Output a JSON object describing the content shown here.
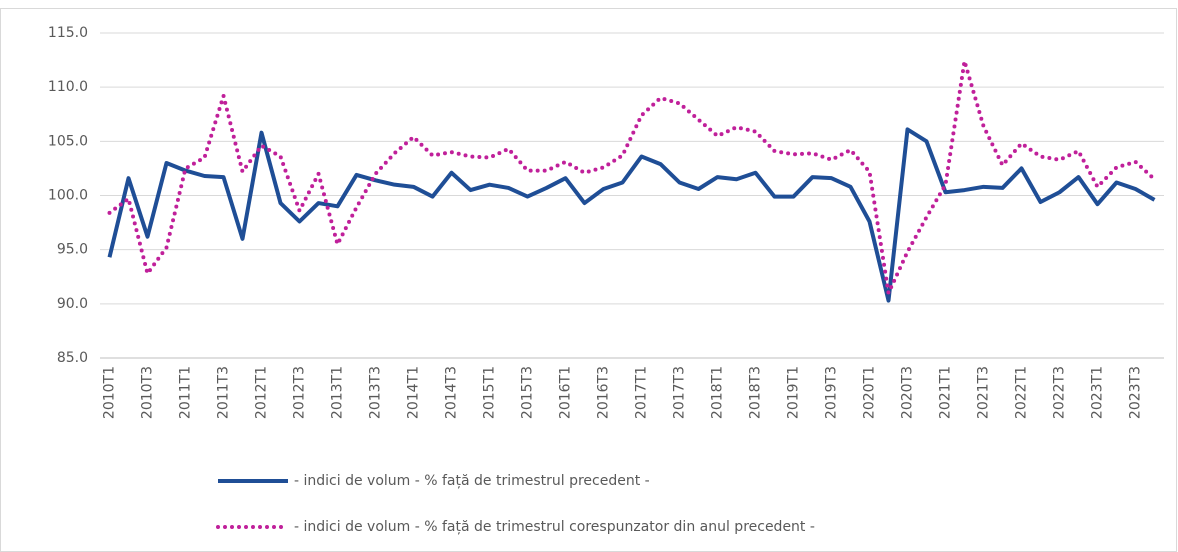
{
  "chart_data": {
    "type": "line",
    "categories": [
      "2010T1",
      null,
      "2010T3",
      null,
      "2011T1",
      null,
      "2011T3",
      null,
      "2012T1",
      null,
      "2012T3",
      null,
      "2013T1",
      null,
      "2013T3",
      null,
      "2014T1",
      null,
      "2014T3",
      null,
      "2015T1",
      null,
      "2015T3",
      null,
      "2016T1",
      null,
      "2016T3",
      null,
      "2017T1",
      null,
      "2017T3",
      null,
      "2018T1",
      null,
      "2018T3",
      null,
      "2019T1",
      null,
      "2019T3",
      null,
      "2020T1",
      null,
      "2020T3",
      null,
      "2021T1",
      null,
      "2021T3",
      null,
      "2022T1",
      null,
      "2022T3",
      null,
      "2023T1",
      null,
      "2023T3",
      null
    ],
    "series": [
      {
        "name": "- indici de volum - % față de trimestrul precedent -",
        "color": "#1f4e96",
        "dash": "solid",
        "values": [
          94.3,
          101.6,
          96.2,
          103.0,
          102.3,
          101.8,
          101.7,
          96.0,
          105.8,
          99.3,
          97.6,
          99.3,
          99.0,
          101.9,
          101.4,
          101.0,
          100.8,
          99.9,
          102.1,
          100.5,
          101.0,
          100.7,
          99.9,
          100.7,
          101.6,
          99.3,
          100.6,
          101.2,
          103.6,
          102.9,
          101.2,
          100.6,
          101.7,
          101.5,
          102.1,
          99.9,
          99.9,
          101.7,
          101.6,
          100.8,
          97.6,
          90.3,
          106.1,
          105.0,
          100.3,
          100.5,
          100.8,
          100.7,
          102.5,
          99.4,
          100.3,
          101.7,
          99.2,
          101.2,
          100.6,
          99.6
        ]
      },
      {
        "name": "- indici de volum - % față de trimestrul corespunzator din anul precedent -",
        "color": "#c0209a",
        "dash": "dotted",
        "values": [
          98.4,
          99.7,
          92.8,
          95.2,
          102.5,
          103.5,
          109.2,
          102.2,
          104.6,
          103.6,
          98.6,
          102.0,
          95.5,
          98.9,
          102.0,
          103.9,
          105.4,
          103.7,
          104.0,
          103.6,
          103.5,
          104.3,
          102.3,
          102.3,
          103.1,
          102.1,
          102.6,
          103.7,
          107.4,
          109.0,
          108.5,
          107.0,
          105.5,
          106.3,
          105.9,
          104.1,
          103.8,
          103.9,
          103.3,
          104.2,
          102.2,
          91.0,
          94.8,
          98.0,
          101.0,
          112.4,
          106.4,
          102.8,
          104.8,
          103.6,
          103.3,
          104.1,
          100.8,
          102.6,
          103.1,
          101.5
        ]
      }
    ],
    "ylim": [
      85,
      115
    ],
    "yticks": [
      {
        "value": 85,
        "label": "85.0"
      },
      {
        "value": 90,
        "label": "90.0"
      },
      {
        "value": 95,
        "label": "95.0"
      },
      {
        "value": 100,
        "label": "100.0"
      },
      {
        "value": 105,
        "label": "105.0"
      },
      {
        "value": 110,
        "label": "110.0"
      },
      {
        "value": 115,
        "label": "115.0"
      }
    ],
    "grid": true,
    "legend": "bottom"
  }
}
